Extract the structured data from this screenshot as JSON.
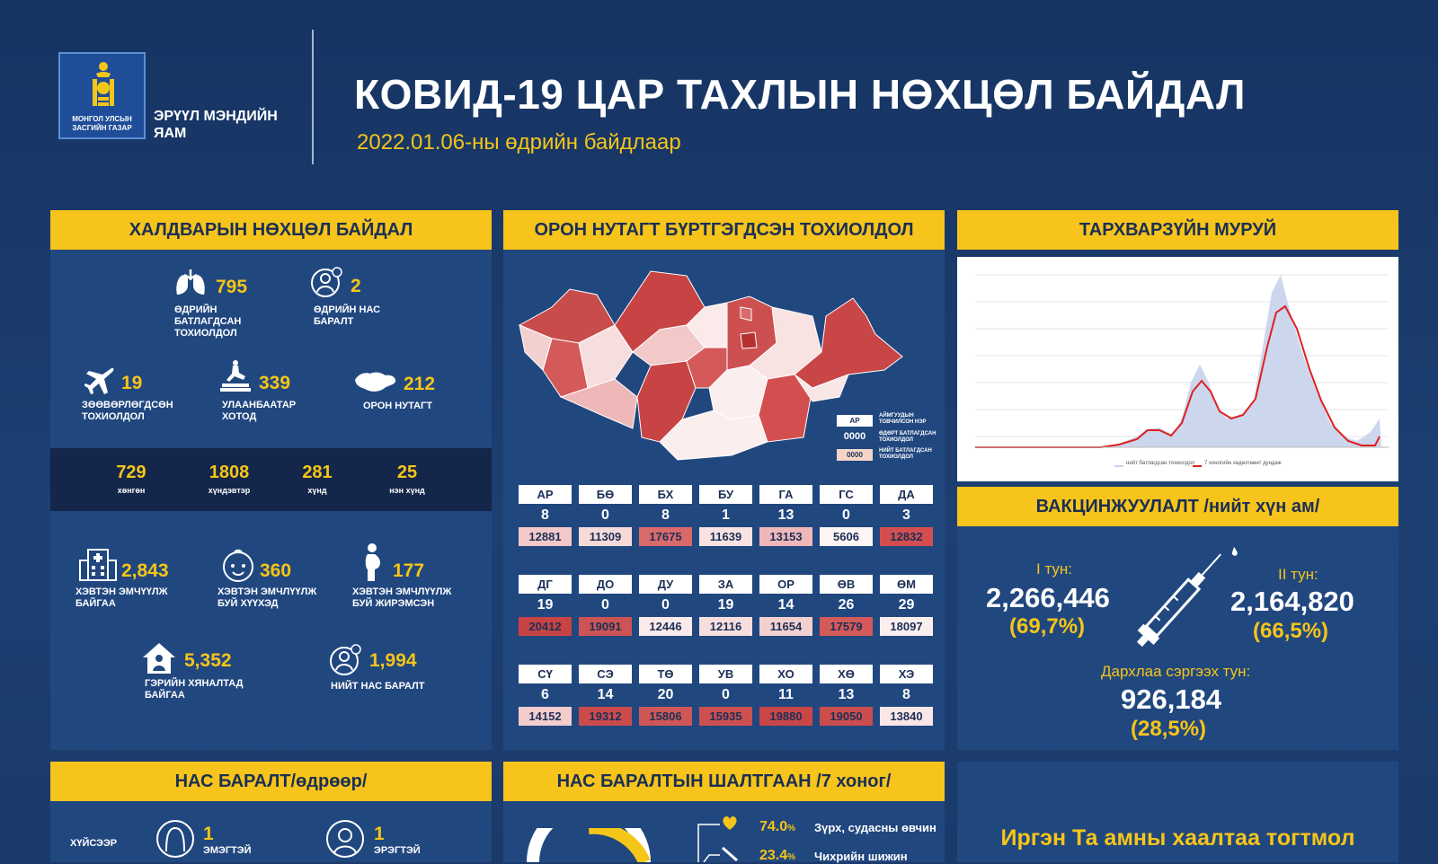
{
  "colors": {
    "accent": "#f6c41a",
    "panel": "#21477f",
    "dark": "#14264a",
    "bg": "#1b3a6b"
  },
  "header": {
    "logo_text": "МОНГОЛ УЛСЫН ЗАСГИЙН ГАЗАР",
    "ministry": "ЭРҮҮЛ МЭНДИЙН ЯАМ",
    "title": "КОВИД-19 ЦАР ТАХЛЫН НӨХЦӨЛ БАЙДАЛ",
    "subtitle": "2022.01.06-ны өдрийн байдлаар"
  },
  "infection": {
    "heading": "ХАЛДВАРЫН НӨХЦӨЛ БАЙДАЛ",
    "daily_confirmed": {
      "value": "795",
      "label": "ӨДРИЙН БАТЛАГДСАН ТОХИОЛДОЛ"
    },
    "daily_deaths": {
      "value": "2",
      "label": "ӨДРИЙН НАС БАРАЛТ"
    },
    "imported": {
      "value": "19",
      "label": "ЗӨӨВӨРЛӨГДСӨН ТОХИОЛДОЛ"
    },
    "ub": {
      "value": "339",
      "label": "УЛААНБААТАР ХОТОД"
    },
    "rural": {
      "value": "212",
      "label": "ОРОН НУТАГТ"
    },
    "severity": [
      {
        "value": "729",
        "label": "хөнгөн"
      },
      {
        "value": "1808",
        "label": "хүндэвтэр"
      },
      {
        "value": "281",
        "label": "хүнд"
      },
      {
        "value": "25",
        "label": "нэн хүнд"
      }
    ],
    "hospitalized": {
      "value": "2,843",
      "label": "ХЭВТЭН ЭМЧҮҮЛЖ БАЙГАА"
    },
    "children": {
      "value": "360",
      "label": "ХЭВТЭН ЭМЧЛҮҮЛЖ БУЙ ХҮҮХЭД"
    },
    "pregnant": {
      "value": "177",
      "label": "ХЭВТЭН ЭМЧЛҮҮЛЖ БУЙ ЖИРЭМСЭН"
    },
    "home": {
      "value": "5,352",
      "label": "ГЭРИЙН ХЯНАЛТАД БАЙГАА"
    },
    "total_deaths": {
      "value": "1,994",
      "label": "НИЙТ НАС БАРАЛТ"
    }
  },
  "regional": {
    "heading": "ОРОН НУТАГТ БҮРТГЭГДСЭН ТОХИОЛДОЛ",
    "legend": {
      "code": "АР",
      "code_text": "АЙМГУУДЫН ТОВЧИЛСОН НЭР",
      "daily": "0000",
      "daily_text": "ӨДӨРТ БАТЛАГДСАН ТОХИОЛДОЛ",
      "total": "0000",
      "total_text": "НИЙТ БАТЛАГДСАН ТОХИОЛДОЛ"
    },
    "rows": [
      [
        {
          "c": "АР",
          "d": "8",
          "t": "12881",
          "s": "#f2c8c8"
        },
        {
          "c": "БӨ",
          "d": "0",
          "t": "11309",
          "s": "#f6dada"
        },
        {
          "c": "БХ",
          "d": "8",
          "t": "17675",
          "s": "#d96a6a"
        },
        {
          "c": "БУ",
          "d": "1",
          "t": "11639",
          "s": "#f8e2e2"
        },
        {
          "c": "ГА",
          "d": "13",
          "t": "13153",
          "s": "#efb8b8"
        },
        {
          "c": "ГС",
          "d": "0",
          "t": "5606",
          "s": "#fdf4f4"
        },
        {
          "c": "ДА",
          "d": "3",
          "t": "12832",
          "s": "#d34f4f"
        }
      ],
      [
        {
          "c": "ДГ",
          "d": "19",
          "t": "20412",
          "s": "#c84343"
        },
        {
          "c": "ДО",
          "d": "0",
          "t": "19091",
          "s": "#cd5454"
        },
        {
          "c": "ДУ",
          "d": "0",
          "t": "12446",
          "s": "#fbeaea"
        },
        {
          "c": "ЗА",
          "d": "19",
          "t": "12116",
          "s": "#f7dede"
        },
        {
          "c": "ОР",
          "d": "14",
          "t": "11654",
          "s": "#f3d0d0"
        },
        {
          "c": "ӨВ",
          "d": "26",
          "t": "17579",
          "s": "#d45a5a"
        },
        {
          "c": "ӨМ",
          "d": "29",
          "t": "18097",
          "s": "#fbeeee"
        }
      ],
      [
        {
          "c": "СҮ",
          "d": "6",
          "t": "14152",
          "s": "#f3cccc"
        },
        {
          "c": "СЭ",
          "d": "14",
          "t": "19312",
          "s": "#cb4b4b"
        },
        {
          "c": "ТӨ",
          "d": "20",
          "t": "15806",
          "s": "#cf5757"
        },
        {
          "c": "УВ",
          "d": "0",
          "t": "15935",
          "s": "#cd5050"
        },
        {
          "c": "ХО",
          "d": "11",
          "t": "19880",
          "s": "#c94646"
        },
        {
          "c": "ХӨ",
          "d": "13",
          "t": "19050",
          "s": "#cc4d4d"
        },
        {
          "c": "ХЭ",
          "d": "8",
          "t": "13840",
          "s": "#f9e6e6"
        }
      ]
    ]
  },
  "curve": {
    "heading": "ТАРХВАРЗҮЙН МУРУЙ",
    "legend_bar": "нийт батлагдсан тохиолдол",
    "legend_line": "7 хоногийн хөдөлгөөнт дундаж"
  },
  "vaccination": {
    "heading": "ВАКЦИНЖУУЛАЛТ /нийт хүн ам/",
    "dose1_label": "I тун:",
    "dose1": "2,266,446",
    "dose1_pct": "(69,7%)",
    "dose2_label": "II тун:",
    "dose2": "2,164,820",
    "dose2_pct": "(66,5%)",
    "booster_label": "Дархлаа сэргээх тун:",
    "booster": "926,184",
    "booster_pct": "(28,5%)"
  },
  "deaths_daily": {
    "heading": "НАС БАРАЛТ/өдрөөр/",
    "row_label": "ХҮЙСЭЭР",
    "female": {
      "value": "1",
      "label": "ЭМЭГТЭЙ"
    },
    "male": {
      "value": "1",
      "label": "ЭРЭГТЭЙ"
    }
  },
  "causes": {
    "heading": "НАС БАРАЛТЫН ШАЛТГААН /7 хоног/",
    "items": [
      {
        "pct": "74.0",
        "unit": "%",
        "label": "Зүрх, судасны өвчин"
      },
      {
        "pct": "23.4",
        "unit": "%",
        "label": "Чихрийн шижин"
      }
    ]
  },
  "message": {
    "line1": "Иргэн Та амны хаалтаа тогтмол"
  }
}
